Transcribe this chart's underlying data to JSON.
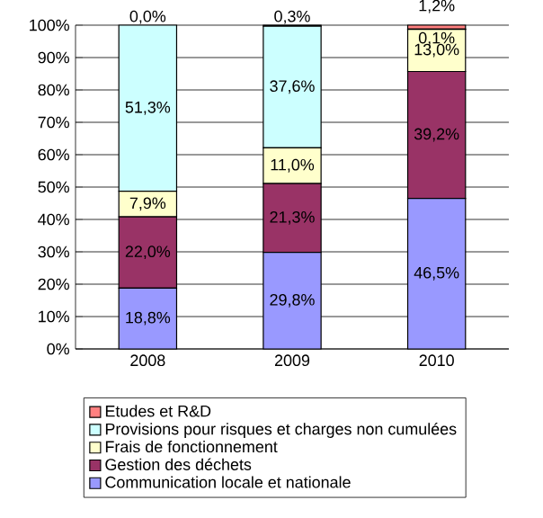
{
  "chart_data": {
    "type": "bar",
    "stacked": true,
    "categories": [
      "2008",
      "2009",
      "2010"
    ],
    "series": [
      {
        "name": "Communication locale et nationale",
        "color": "#9999ff",
        "values": [
          18.8,
          29.8,
          46.5
        ],
        "value_labels": [
          "18,8%",
          "29,8%",
          "46,5%"
        ]
      },
      {
        "name": "Gestion des déchets",
        "color": "#993366",
        "values": [
          22.0,
          21.3,
          39.2
        ],
        "value_labels": [
          "22,0%",
          "21,3%",
          "39,2%"
        ]
      },
      {
        "name": "Frais de fonctionnement",
        "color": "#ffffcc",
        "values": [
          7.9,
          11.0,
          13.0
        ],
        "value_labels": [
          "7,9%",
          "11,0%",
          "13,0%"
        ]
      },
      {
        "name": "Provisions pour risques et charges non cumulées",
        "color": "#ccffff",
        "values": [
          51.3,
          37.6,
          0.1
        ],
        "value_labels": [
          "51,3%",
          "37,6%",
          "0,1%"
        ]
      },
      {
        "name": "Etudes et R&D",
        "color": "#ff8080",
        "values": [
          0.0,
          0.3,
          1.2
        ],
        "value_labels": [
          "0,0%",
          "0,3%",
          "1,2%"
        ]
      }
    ],
    "ylim": [
      0,
      100
    ],
    "yticks": [
      {
        "value": 0,
        "label": "0%"
      },
      {
        "value": 10,
        "label": "10%"
      },
      {
        "value": 20,
        "label": "20%"
      },
      {
        "value": 30,
        "label": "30%"
      },
      {
        "value": 40,
        "label": "40%"
      },
      {
        "value": 50,
        "label": "50%"
      },
      {
        "value": 60,
        "label": "60%"
      },
      {
        "value": 70,
        "label": "70%"
      },
      {
        "value": 80,
        "label": "80%"
      },
      {
        "value": 90,
        "label": "90%"
      },
      {
        "value": 100,
        "label": "100%"
      }
    ],
    "grid": "y",
    "legend": "bottom"
  }
}
